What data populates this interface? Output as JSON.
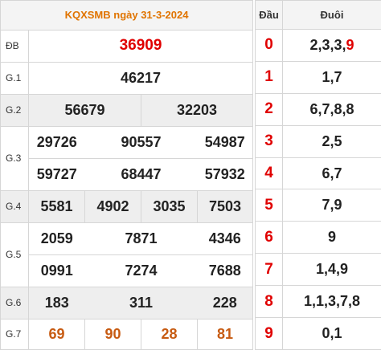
{
  "title": "KQXSMB ngày 31-3-2024",
  "prizes": {
    "db": {
      "label": "ĐB",
      "numbers": [
        "36909"
      ]
    },
    "g1": {
      "label": "G.1",
      "numbers": [
        "46217"
      ]
    },
    "g2": {
      "label": "G.2",
      "numbers": [
        "56679",
        "32203"
      ]
    },
    "g3": {
      "label": "G.3",
      "numbers": [
        "29726",
        "90557",
        "54987",
        "59727",
        "68447",
        "57932"
      ]
    },
    "g4": {
      "label": "G.4",
      "numbers": [
        "5581",
        "4902",
        "3035",
        "7503"
      ]
    },
    "g5": {
      "label": "G.5",
      "numbers": [
        "2059",
        "7871",
        "4346",
        "0991",
        "7274",
        "7688"
      ]
    },
    "g6": {
      "label": "G.6",
      "numbers": [
        "183",
        "311",
        "228"
      ]
    },
    "g7": {
      "label": "G.7",
      "numbers": [
        "69",
        "90",
        "28",
        "81"
      ]
    }
  },
  "loto": {
    "head_label": "Đầu",
    "tail_label": "Đuôi",
    "rows": [
      {
        "dau": "0",
        "duoi": "2,3,3,",
        "duoi_special": "9"
      },
      {
        "dau": "1",
        "duoi": "1,7",
        "duoi_special": ""
      },
      {
        "dau": "2",
        "duoi": "6,7,8,8",
        "duoi_special": ""
      },
      {
        "dau": "3",
        "duoi": "2,5",
        "duoi_special": ""
      },
      {
        "dau": "4",
        "duoi": "6,7",
        "duoi_special": ""
      },
      {
        "dau": "5",
        "duoi": "7,9",
        "duoi_special": ""
      },
      {
        "dau": "6",
        "duoi": "9",
        "duoi_special": ""
      },
      {
        "dau": "7",
        "duoi": "1,4,9",
        "duoi_special": ""
      },
      {
        "dau": "8",
        "duoi": "1,1,3,7,8",
        "duoi_special": ""
      },
      {
        "dau": "9",
        "duoi": "0,1",
        "duoi_special": ""
      }
    ]
  },
  "colors": {
    "header_text": "#e07400",
    "special_red": "#e00000",
    "g7_orange": "#c75b12",
    "shaded_row": "#eeeeee"
  }
}
